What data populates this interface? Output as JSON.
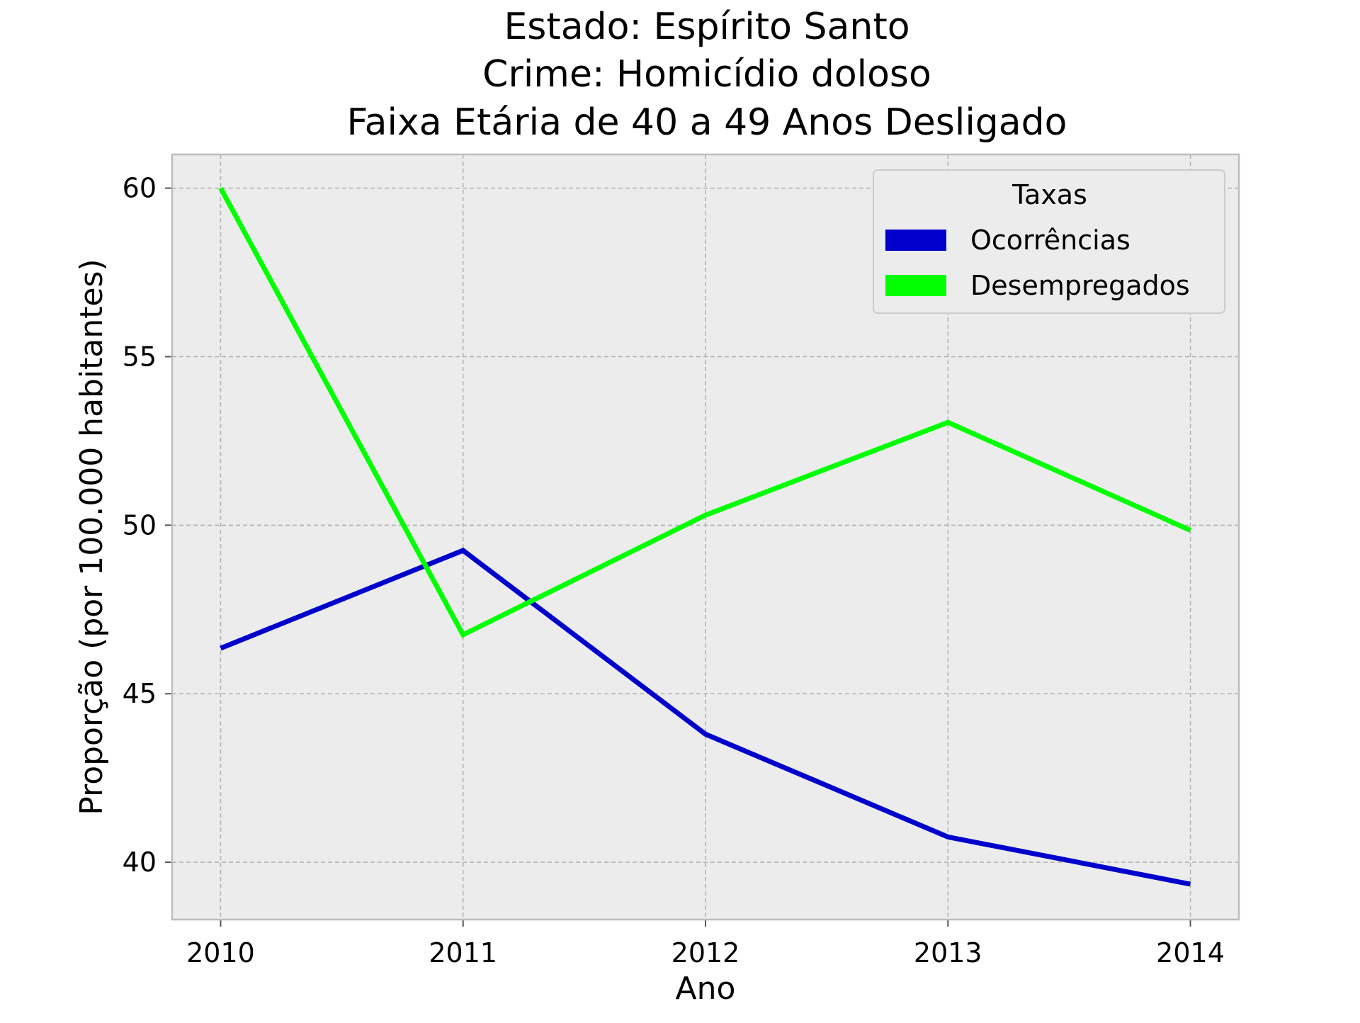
{
  "chart_data": {
    "type": "line",
    "title_lines": [
      "Estado: Espírito Santo",
      "Crime: Homicídio doloso",
      "Faixa Etária de 40 a 49 Anos   Desligado"
    ],
    "xlabel": "Ano",
    "ylabel": "Proporção (por 100.000 habitantes)",
    "x": [
      2010,
      2011,
      2012,
      2013,
      2014
    ],
    "x_tick_labels": [
      "2010",
      "2011",
      "2012",
      "2013",
      "2014"
    ],
    "y_ticks": [
      40,
      45,
      50,
      55,
      60
    ],
    "y_tick_labels": [
      "40",
      "45",
      "50",
      "55",
      "60"
    ],
    "xlim": [
      2009.8,
      2014.2
    ],
    "ylim": [
      38.3,
      61.0
    ],
    "grid": true,
    "legend": {
      "title": "Taxas",
      "placement": "top-right"
    },
    "series": [
      {
        "name": "Ocorrências",
        "color": "#0000cc",
        "values": [
          46.35,
          49.25,
          43.8,
          40.75,
          39.35
        ]
      },
      {
        "name": "Desempregados",
        "color": "#00ff00",
        "values": [
          60.0,
          46.75,
          50.3,
          53.05,
          49.85
        ]
      }
    ],
    "plot_background": "#ececec",
    "grid_color": "#b0b0b0",
    "frame_color": "#bcbcbc"
  }
}
